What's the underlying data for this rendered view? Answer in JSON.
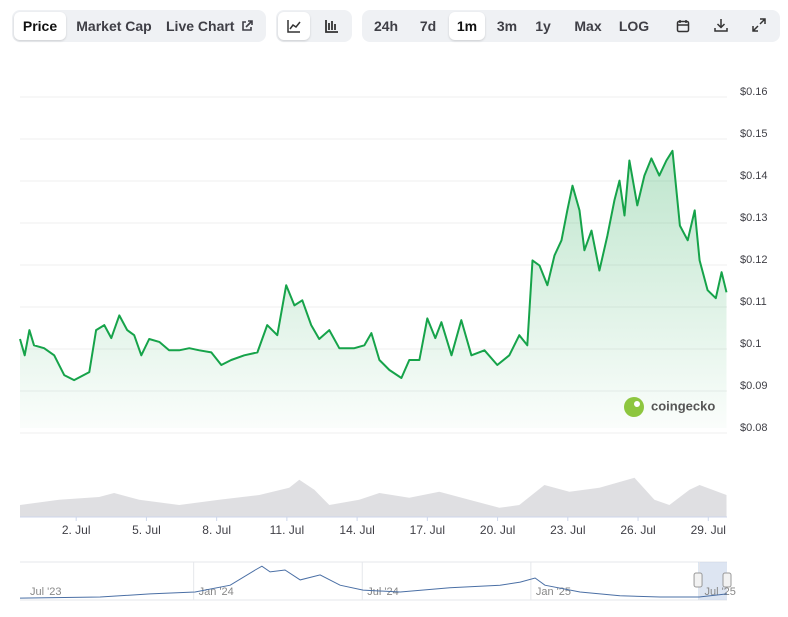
{
  "chart_data": {
    "type": "line",
    "tabs": [
      "Price",
      "Market Cap",
      "Live Chart"
    ],
    "active_tab": 0,
    "ranges": [
      "24h",
      "7d",
      "1m",
      "3m",
      "1y",
      "Max",
      "LOG"
    ],
    "active_range": 2,
    "watermark": "coingecko",
    "color": "#16a34a",
    "grid": true,
    "x": [
      -0.4,
      -0.2,
      0.0,
      0.2,
      0.63,
      1.06,
      1.49,
      1.91,
      2.56,
      2.85,
      3.2,
      3.5,
      3.84,
      4.18,
      4.48,
      4.78,
      5.12,
      5.55,
      5.97,
      6.4,
      6.83,
      7.26,
      7.77,
      8.2,
      8.62,
      9.18,
      9.74,
      10.16,
      10.59,
      10.97,
      11.32,
      11.66,
      12.04,
      12.38,
      12.81,
      13.24,
      13.88,
      14.31,
      14.61,
      14.95,
      15.38,
      15.89,
      16.23,
      16.66,
      17.0,
      17.34,
      17.6,
      18.03,
      18.45,
      18.88,
      19.44,
      19.99,
      20.5,
      20.93,
      21.27,
      21.49,
      21.79,
      22.13,
      22.43,
      22.73,
      22.98,
      23.2,
      23.5,
      23.71,
      24.01,
      24.35,
      24.69,
      24.99,
      25.21,
      25.42,
      25.63,
      25.97,
      26.27,
      26.57,
      26.91,
      27.21,
      27.47,
      27.79,
      28.12,
      28.42,
      28.63,
      28.97,
      29.32,
      29.57,
      29.78
    ],
    "values": [
      0.1012,
      0.0973,
      0.1033,
      0.0997,
      0.099,
      0.0973,
      0.0926,
      0.0914,
      0.0933,
      0.1033,
      0.1045,
      0.1014,
      0.1068,
      0.1033,
      0.1021,
      0.0973,
      0.1012,
      0.1005,
      0.0985,
      0.0985,
      0.099,
      0.0985,
      0.098,
      0.095,
      0.0962,
      0.0973,
      0.098,
      0.1045,
      0.1021,
      0.114,
      0.1092,
      0.1104,
      0.1045,
      0.1012,
      0.1033,
      0.099,
      0.099,
      0.0997,
      0.1026,
      0.0962,
      0.0938,
      0.0919,
      0.0962,
      0.0962,
      0.1061,
      0.1014,
      0.1052,
      0.0973,
      0.1057,
      0.0973,
      0.0985,
      0.095,
      0.0973,
      0.1021,
      0.0997,
      0.1199,
      0.1187,
      0.114,
      0.1211,
      0.1247,
      0.1318,
      0.1377,
      0.1318,
      0.1223,
      0.127,
      0.1175,
      0.1258,
      0.1342,
      0.1389,
      0.1306,
      0.1437,
      0.133,
      0.1401,
      0.1442,
      0.1401,
      0.1437,
      0.146,
      0.1282,
      0.1247,
      0.1318,
      0.1199,
      0.1128,
      0.1109,
      0.1171,
      0.1123
    ],
    "xlim": [
      -0.4,
      29.8
    ],
    "xticks": [
      {
        "value": 2,
        "label": "2. Jul"
      },
      {
        "value": 5,
        "label": "5. Jul"
      },
      {
        "value": 8,
        "label": "8. Jul"
      },
      {
        "value": 11,
        "label": "11. Jul"
      },
      {
        "value": 14,
        "label": "14. Jul"
      },
      {
        "value": 17,
        "label": "17. Jul"
      },
      {
        "value": 20,
        "label": "20. Jul"
      },
      {
        "value": 23,
        "label": "23. Jul"
      },
      {
        "value": 26,
        "label": "26. Jul"
      },
      {
        "value": 29,
        "label": "29. Jul"
      }
    ],
    "ylim": [
      0.08,
      0.16
    ],
    "yticks": [
      {
        "value": 0.08,
        "label": "$0.08"
      },
      {
        "value": 0.09,
        "label": "$0.09"
      },
      {
        "value": 0.1,
        "label": "$0.1"
      },
      {
        "value": 0.11,
        "label": "$0.11"
      },
      {
        "value": 0.12,
        "label": "$0.12"
      },
      {
        "value": 0.13,
        "label": "$0.13"
      },
      {
        "value": 0.14,
        "label": "$0.14"
      },
      {
        "value": 0.15,
        "label": "$0.15"
      },
      {
        "value": 0.16,
        "label": "$0.16"
      }
    ],
    "volume": {
      "x": [
        -0.4,
        1.27,
        2.98,
        3.62,
        4.69,
        6.4,
        8.11,
        9.82,
        11.1,
        11.53,
        12.17,
        12.81,
        14.09,
        14.95,
        16.23,
        17.51,
        18.79,
        20.08,
        20.93,
        22.0,
        23.07,
        24.35,
        25.85,
        26.7,
        27.34,
        28.2,
        28.63,
        29.78
      ],
      "values": [
        30,
        43,
        50,
        60,
        43,
        30,
        43,
        55,
        73,
        93,
        68,
        30,
        43,
        60,
        48,
        63,
        43,
        23,
        30,
        80,
        63,
        73,
        98,
        43,
        30,
        68,
        80,
        55
      ],
      "ylim": [
        0,
        100
      ],
      "color": "#d4d4d8"
    },
    "navigator": {
      "x": [
        -0.18,
        2.67,
        4.45,
        6.05,
        7.3,
        8.19,
        8.43,
        8.72,
        9.25,
        9.79,
        10.5,
        11.21,
        12.03,
        13.35,
        15.12,
        16.9,
        17.62,
        18.15,
        18.5,
        19.75,
        21.17,
        22.6,
        23.99,
        24.98
      ],
      "values": [
        5,
        8,
        16,
        21,
        39,
        79,
        89,
        74,
        79,
        53,
        66,
        39,
        26,
        21,
        32,
        39,
        47,
        58,
        39,
        21,
        11,
        8,
        8,
        16
      ],
      "xlim": [
        -0.18,
        24.98
      ],
      "ylim": [
        0,
        100
      ],
      "xticks": [
        {
          "value": 0,
          "label": "Jul '23"
        },
        {
          "value": 6,
          "label": "Jan '24"
        },
        {
          "value": 12,
          "label": "Jul '24"
        },
        {
          "value": 18,
          "label": "Jan '25"
        },
        {
          "value": 24,
          "label": "Jul '25"
        }
      ],
      "selection": [
        23.95,
        24.98
      ],
      "color": "#4a6fa5"
    }
  }
}
